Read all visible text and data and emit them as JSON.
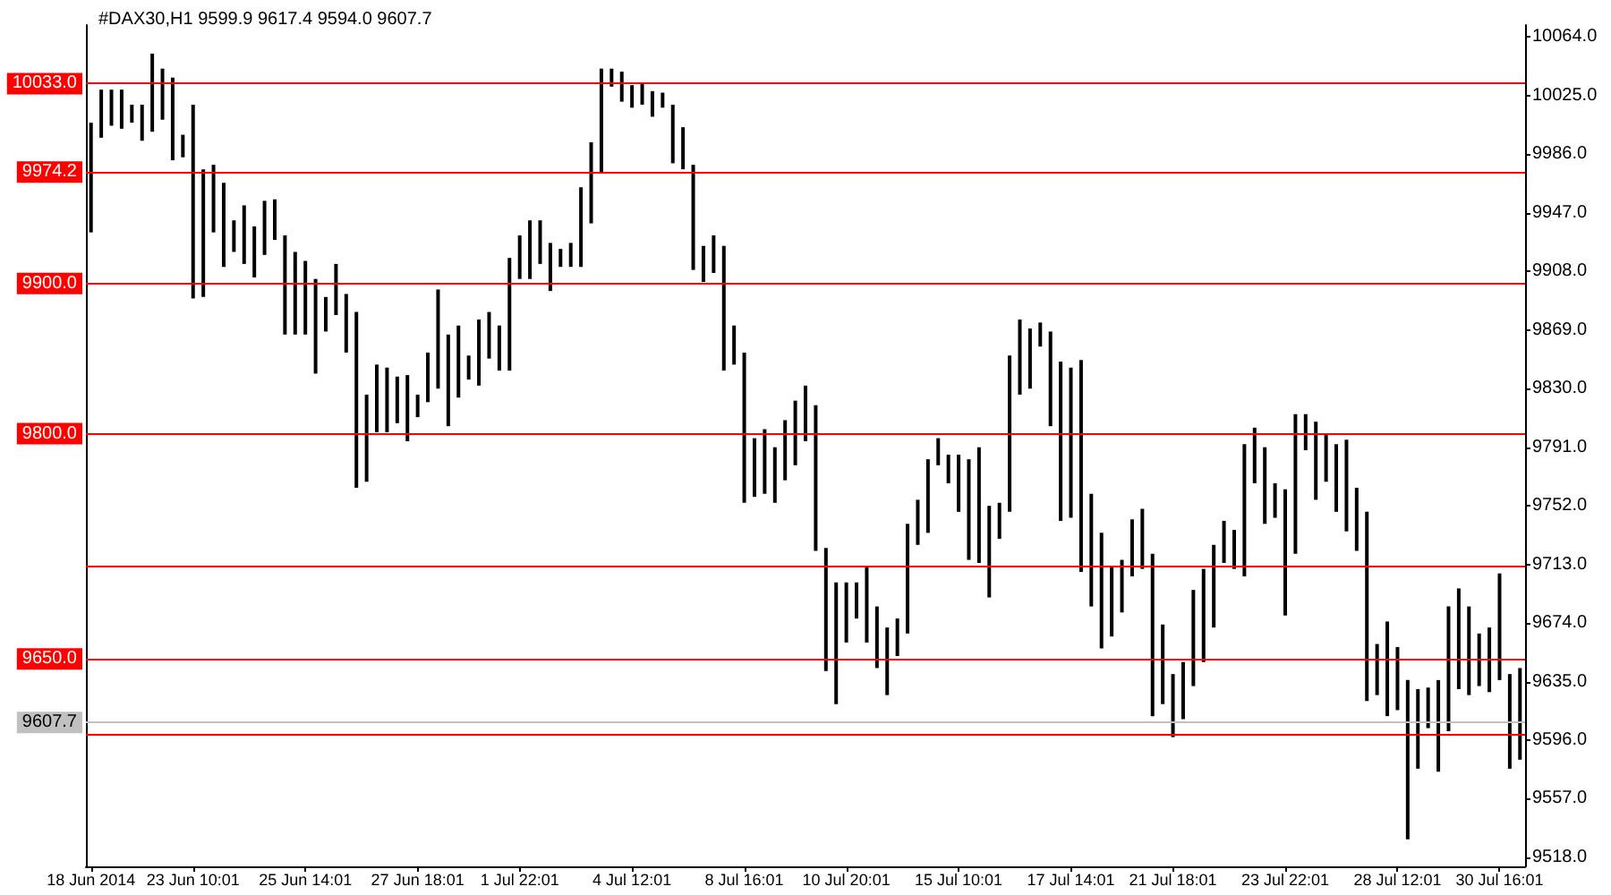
{
  "chart_data": {
    "type": "bar",
    "title": "#DAX30,H1 9599.9 9617.4 9594.0 9607.7",
    "categories": [
      "18 Jun 2014",
      null,
      null,
      null,
      null,
      null,
      null,
      null,
      null,
      null,
      "23 Jun 10:01",
      null,
      null,
      null,
      null,
      null,
      null,
      null,
      null,
      null,
      null,
      "25 Jun 14:01",
      null,
      null,
      null,
      null,
      null,
      null,
      null,
      null,
      null,
      null,
      "27 Jun 18:01",
      null,
      null,
      null,
      null,
      null,
      null,
      null,
      null,
      null,
      "1 Jul 22:01",
      null,
      null,
      null,
      null,
      null,
      null,
      null,
      null,
      null,
      null,
      "4 Jul 12:01",
      null,
      null,
      null,
      null,
      null,
      null,
      null,
      null,
      null,
      null,
      "8 Jul 16:01",
      null,
      null,
      null,
      null,
      null,
      null,
      null,
      null,
      null,
      "10 Jul 20:01",
      null,
      null,
      null,
      null,
      null,
      null,
      null,
      null,
      null,
      null,
      "15 Jul 10:01",
      null,
      null,
      null,
      null,
      null,
      null,
      null,
      null,
      null,
      null,
      "17 Jul 14:01",
      null,
      null,
      null,
      null,
      null,
      null,
      null,
      null,
      null,
      "21 Jul 18:01",
      null,
      null,
      null,
      null,
      null,
      null,
      null,
      null,
      null,
      null,
      "23 Jul 22:01",
      null,
      null,
      null,
      null,
      null,
      null,
      null,
      null,
      null,
      null,
      "28 Jul 12:01",
      null,
      null,
      null,
      null,
      null,
      null,
      null,
      null,
      null,
      "30 Jul 16:01",
      null,
      null
    ],
    "base": [
      9934,
      9997,
      10005,
      10003,
      10007,
      9995,
      10001,
      10009,
      9982,
      9984,
      9890,
      9891,
      9934,
      9911,
      9921,
      9913,
      9904,
      9919,
      9929,
      9866,
      9866,
      9866,
      9840,
      9868,
      9879,
      9854,
      9764,
      9768,
      9801,
      9801,
      9807,
      9795,
      9811,
      9821,
      9830,
      9805,
      9824,
      9836,
      9832,
      9850,
      9842,
      9842,
      9903,
      9903,
      9913,
      9895,
      9911,
      9911,
      9911,
      9940,
      9974,
      10031,
      10021,
      10017,
      10019,
      10011,
      10017,
      9980,
      9976,
      9909,
      9901,
      9907,
      9842,
      9846,
      9754,
      9758,
      9760,
      9754,
      9769,
      9779,
      9795,
      9722,
      9642,
      9620,
      9661,
      9677,
      9661,
      9644,
      9626,
      9652,
      9667,
      9726,
      9734,
      9779,
      9767,
      9748,
      9716,
      9714,
      9691,
      9730,
      9748,
      9826,
      9830,
      9858,
      9805,
      9742,
      9744,
      9708,
      9685,
      9657,
      9665,
      9681,
      9705,
      9710,
      9612,
      9620,
      9598,
      9610,
      9632,
      9648,
      9671,
      9714,
      9710,
      9705,
      9767,
      9740,
      9744,
      9679,
      9720,
      9789,
      9756,
      9768,
      9748,
      9735,
      9722,
      9622,
      9626,
      9612,
      9616,
      9530,
      9577,
      9604,
      9575,
      9602,
      9630,
      9626,
      9632,
      9628,
      9636,
      9577,
      9583
    ],
    "values": [
      73,
      32,
      24,
      26,
      12,
      24,
      52,
      34,
      55,
      15,
      129,
      85,
      45,
      56,
      21,
      39,
      34,
      36,
      27,
      66,
      55,
      49,
      63,
      23,
      34,
      39,
      117,
      58,
      45,
      43,
      31,
      44,
      15,
      33,
      66,
      61,
      48,
      16,
      44,
      31,
      30,
      75,
      29,
      39,
      29,
      32,
      12,
      16,
      53,
      54,
      69,
      12,
      20,
      15,
      14,
      17,
      10,
      39,
      28,
      70,
      24,
      25,
      83,
      26,
      100,
      39,
      43,
      37,
      40,
      43,
      37,
      97,
      82,
      81,
      40,
      24,
      50,
      41,
      45,
      25,
      73,
      30,
      49,
      18,
      19,
      38,
      67,
      77,
      61,
      24,
      104,
      50,
      40,
      16,
      63,
      106,
      100,
      141,
      75,
      77,
      47,
      35,
      38,
      40,
      108,
      53,
      42,
      38,
      64,
      62,
      55,
      28,
      26,
      88,
      37,
      51,
      23,
      84,
      93,
      24,
      52,
      32,
      45,
      61,
      42,
      126,
      34,
      63,
      42,
      106,
      53,
      27,
      61,
      83,
      67,
      59,
      35,
      43,
      71,
      63,
      61
    ],
    "color": "#000000",
    "ylim": [
      9512,
      10072
    ],
    "yticks": [
      {
        "value": 9518,
        "label": "9518.0"
      },
      {
        "value": 9557,
        "label": "9557.0"
      },
      {
        "value": 9596,
        "label": "9596.0"
      },
      {
        "value": 9635,
        "label": "9635.0"
      },
      {
        "value": 9674,
        "label": "9674.0"
      },
      {
        "value": 9713,
        "label": "9713.0"
      },
      {
        "value": 9752,
        "label": "9752.0"
      },
      {
        "value": 9791,
        "label": "9791.0"
      },
      {
        "value": 9830,
        "label": "9830.0"
      },
      {
        "value": 9869,
        "label": "9869.0"
      },
      {
        "value": 9908,
        "label": "9908.0"
      },
      {
        "value": 9947,
        "label": "9947.0"
      },
      {
        "value": 9986,
        "label": "9986.0"
      },
      {
        "value": 10025,
        "label": "10025.0"
      },
      {
        "value": 10064,
        "label": "10064.0"
      }
    ],
    "grid": false,
    "ref_lines": [
      {
        "axis": "y",
        "value": 10033,
        "label": "10033.0",
        "color": "#ff0000"
      },
      {
        "axis": "y",
        "value": 9974.2,
        "label": "9974.2",
        "color": "#ff0000"
      },
      {
        "axis": "y",
        "value": 9900,
        "label": "9900.0",
        "color": "#ff0000"
      },
      {
        "axis": "y",
        "value": 9800,
        "label": "9800.0",
        "color": "#ff0000"
      },
      {
        "axis": "y",
        "value": 9712,
        "color": "#ff0000"
      },
      {
        "axis": "y",
        "value": 9650,
        "label": "9650.0",
        "color": "#ff0000"
      },
      {
        "axis": "y",
        "value": 9600,
        "color": "#ff0000"
      },
      {
        "axis": "y",
        "value": 9607.7,
        "label": "9607.7",
        "color": "#c0c0c0"
      }
    ]
  }
}
